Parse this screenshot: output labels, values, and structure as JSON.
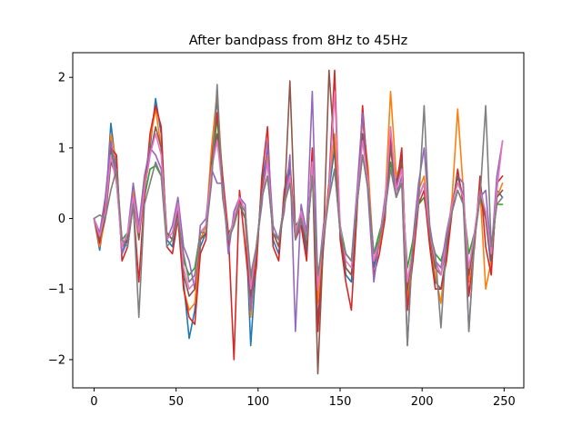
{
  "chart_data": {
    "type": "line",
    "title": "After bandpass from 8Hz to 45Hz",
    "xlabel": "",
    "ylabel": "",
    "xlim": [
      -13,
      262
    ],
    "ylim": [
      -2.4,
      2.35
    ],
    "xticks": [
      0,
      50,
      100,
      150,
      200,
      250
    ],
    "yticks": [
      -2,
      -1,
      0,
      1,
      2
    ],
    "xtick_labels": [
      "0",
      "50",
      "100",
      "150",
      "200",
      "250"
    ],
    "ytick_labels": [
      "−2",
      "−1",
      "0",
      "1",
      "2"
    ],
    "grid": false,
    "legend": "none",
    "n_points": 250,
    "series": [
      {
        "color": "#1f77b4",
        "values": [
          0.0,
          -0.45,
          0.1,
          1.35,
          0.7,
          -0.5,
          -0.3,
          0.3,
          -0.2,
          0.4,
          1.0,
          1.7,
          1.2,
          -0.3,
          -0.4,
          0.1,
          -0.9,
          -1.7,
          -1.3,
          -0.4,
          -0.2,
          0.9,
          1.7,
          0.4,
          -0.3,
          -0.1,
          0.3,
          0.1,
          -1.8,
          -0.6,
          0.5,
          1.0,
          -0.3,
          -0.5,
          0.3,
          0.7,
          -0.2,
          0.0,
          -0.5,
          0.9,
          -1.5,
          -0.3,
          0.4,
          1.0,
          -0.2,
          -0.8,
          -0.9,
          0.2,
          1.5,
          0.6,
          -0.7,
          -0.3,
          0.1,
          1.1,
          0.5,
          0.9,
          -1.1,
          -0.5,
          0.3,
          0.5,
          -0.3,
          -0.9,
          -1.0,
          -0.5,
          0.2,
          0.6,
          0.3,
          -0.8,
          -0.3,
          0.5,
          0.0,
          -0.7,
          0.4,
          0.3
        ]
      },
      {
        "color": "#ff7f0e",
        "values": [
          0.0,
          -0.4,
          0.0,
          1.2,
          0.8,
          -0.4,
          -0.2,
          0.4,
          -0.3,
          0.5,
          1.1,
          1.55,
          1.0,
          -0.2,
          -0.3,
          0.2,
          -1.0,
          -1.3,
          -1.2,
          -0.3,
          -0.1,
          1.0,
          1.8,
          0.5,
          -0.4,
          0.0,
          0.2,
          0.0,
          -1.4,
          -0.5,
          0.4,
          0.9,
          -0.2,
          -0.4,
          0.2,
          0.6,
          -0.3,
          0.1,
          -0.4,
          0.8,
          -1.2,
          -0.2,
          0.5,
          1.2,
          -0.1,
          -0.7,
          -0.8,
          0.3,
          1.4,
          0.7,
          -0.6,
          -0.4,
          0.2,
          1.8,
          0.6,
          0.8,
          -1.2,
          -0.4,
          0.4,
          0.6,
          -0.2,
          -0.8,
          -1.2,
          -0.4,
          0.3,
          1.55,
          0.4,
          -0.9,
          -0.2,
          0.4,
          -1.0,
          -0.6,
          0.3,
          0.5
        ]
      },
      {
        "color": "#2ca02c",
        "values": [
          0.0,
          -0.3,
          0.1,
          1.0,
          0.5,
          -0.3,
          -0.2,
          0.2,
          -0.1,
          0.3,
          0.7,
          0.75,
          0.6,
          -0.2,
          -0.3,
          0.1,
          -0.6,
          -0.8,
          -0.7,
          -0.2,
          -0.1,
          0.6,
          1.45,
          0.3,
          -0.2,
          -0.1,
          0.2,
          0.1,
          -0.9,
          -0.4,
          0.3,
          0.6,
          -0.2,
          -0.3,
          0.2,
          0.5,
          -0.1,
          0.0,
          -0.3,
          0.6,
          -0.9,
          -0.2,
          0.3,
          0.7,
          -0.1,
          -0.5,
          -0.6,
          0.2,
          0.9,
          0.4,
          -0.5,
          -0.2,
          0.1,
          0.8,
          0.4,
          0.5,
          -0.7,
          -0.3,
          0.2,
          0.3,
          -0.2,
          -0.5,
          -0.6,
          -0.3,
          0.1,
          0.4,
          0.2,
          -0.5,
          -0.2,
          0.3,
          0.0,
          -0.4,
          0.2,
          0.2
        ]
      },
      {
        "color": "#d62728",
        "values": [
          0.0,
          -0.35,
          0.2,
          1.0,
          0.9,
          -0.6,
          -0.4,
          0.2,
          -0.9,
          0.3,
          1.2,
          1.6,
          1.3,
          -0.4,
          -0.5,
          0.0,
          -1.0,
          -1.4,
          -1.5,
          -0.5,
          -0.3,
          0.8,
          1.5,
          0.6,
          -0.2,
          -2.0,
          0.4,
          -0.4,
          -1.2,
          -0.7,
          0.6,
          1.3,
          -0.4,
          -0.6,
          0.4,
          0.8,
          -0.3,
          -0.1,
          -0.6,
          1.0,
          -1.6,
          -0.4,
          0.5,
          2.1,
          -0.3,
          -0.9,
          -1.3,
          0.1,
          1.6,
          0.5,
          -0.8,
          -0.5,
          0.0,
          1.2,
          0.4,
          1.0,
          -1.3,
          -0.6,
          0.2,
          0.4,
          -0.4,
          -1.0,
          -1.0,
          -0.6,
          0.1,
          0.7,
          0.2,
          -1.1,
          -0.4,
          0.6,
          -0.4,
          -0.8,
          0.5,
          0.6
        ]
      },
      {
        "color": "#9467bd",
        "values": [
          0.0,
          -0.2,
          0.3,
          1.1,
          0.6,
          -0.5,
          -0.2,
          0.5,
          -0.1,
          0.6,
          1.0,
          0.9,
          0.7,
          -0.3,
          -0.1,
          0.3,
          -0.4,
          -0.6,
          -1.0,
          -0.1,
          0.0,
          0.7,
          0.5,
          0.5,
          -0.5,
          0.1,
          0.3,
          0.2,
          -1.3,
          -0.4,
          0.2,
          1.1,
          -0.1,
          -0.3,
          0.1,
          0.9,
          -1.6,
          0.2,
          -0.2,
          1.8,
          -0.9,
          -0.1,
          0.3,
          0.7,
          -0.2,
          -0.5,
          -0.6,
          0.4,
          1.5,
          0.3,
          -0.9,
          -0.3,
          0.3,
          1.0,
          0.3,
          0.6,
          -1.8,
          -0.3,
          0.5,
          1.0,
          -0.1,
          -0.6,
          -0.7,
          -0.2,
          0.2,
          0.6,
          0.5,
          -1.6,
          -0.3,
          0.3,
          0.4,
          -0.5,
          0.6,
          1.1
        ]
      },
      {
        "color": "#8c564b",
        "values": [
          0.0,
          -0.3,
          0.0,
          0.8,
          0.6,
          -0.4,
          -0.3,
          0.3,
          -0.3,
          0.4,
          0.9,
          1.3,
          1.0,
          -0.2,
          -0.3,
          0.1,
          -0.8,
          -1.1,
          -1.0,
          -0.3,
          -0.2,
          0.8,
          1.2,
          0.4,
          -0.3,
          0.0,
          0.2,
          0.0,
          -1.1,
          -0.5,
          0.4,
          0.8,
          -0.2,
          -0.4,
          0.2,
          1.95,
          -0.2,
          0.0,
          -0.4,
          0.8,
          -2.2,
          -0.3,
          2.1,
          0.9,
          -0.2,
          -0.7,
          -0.8,
          0.2,
          1.2,
          0.5,
          -0.6,
          -0.3,
          0.1,
          1.0,
          0.4,
          0.8,
          -1.0,
          -0.4,
          0.3,
          0.5,
          -0.2,
          -0.7,
          -0.8,
          -0.4,
          0.2,
          0.6,
          0.3,
          -0.8,
          -0.3,
          0.4,
          0.0,
          -0.6,
          0.3,
          0.4
        ]
      },
      {
        "color": "#e377c2",
        "values": [
          0.0,
          -0.25,
          0.1,
          0.9,
          0.5,
          -0.4,
          -0.2,
          0.3,
          -0.2,
          0.4,
          0.9,
          1.2,
          0.9,
          -0.3,
          -0.2,
          0.2,
          -0.7,
          -1.0,
          -0.9,
          -0.2,
          -0.1,
          0.7,
          1.1,
          0.4,
          -0.3,
          0.0,
          0.3,
          0.1,
          -1.0,
          -0.4,
          0.3,
          0.8,
          -0.2,
          -0.3,
          0.2,
          0.6,
          -0.2,
          0.1,
          -0.3,
          0.8,
          -1.0,
          -0.2,
          0.4,
          1.8,
          -0.1,
          -0.6,
          -0.7,
          0.3,
          1.1,
          0.5,
          -0.6,
          -0.3,
          0.2,
          1.3,
          0.4,
          0.7,
          -0.9,
          -0.4,
          0.3,
          0.5,
          -0.2,
          -0.6,
          -0.8,
          -0.3,
          0.2,
          0.5,
          0.3,
          -0.7,
          -0.2,
          0.4,
          0.1,
          -0.5,
          0.4,
          1.1
        ]
      },
      {
        "color": "#7f7f7f",
        "values": [
          0.0,
          0.05,
          0.0,
          0.4,
          0.7,
          -0.3,
          -0.4,
          0.2,
          -1.4,
          0.2,
          0.5,
          0.8,
          0.6,
          -0.4,
          -0.3,
          0.0,
          -0.5,
          -0.9,
          -0.8,
          -0.2,
          -0.2,
          0.5,
          1.9,
          0.3,
          -0.3,
          -0.1,
          0.2,
          0.1,
          -0.8,
          -0.4,
          0.3,
          0.6,
          -0.2,
          -0.3,
          0.2,
          0.5,
          -0.3,
          0.0,
          -0.3,
          0.6,
          -0.8,
          -0.3,
          0.3,
          0.7,
          -0.2,
          -0.5,
          -0.6,
          0.2,
          0.9,
          0.4,
          -0.5,
          -0.3,
          0.1,
          0.7,
          0.3,
          0.5,
          -1.8,
          -0.3,
          0.2,
          1.6,
          -0.2,
          -0.5,
          -1.55,
          -0.3,
          0.1,
          0.4,
          0.2,
          -1.6,
          -0.3,
          0.3,
          1.6,
          -0.4,
          0.2,
          0.3
        ]
      }
    ]
  }
}
